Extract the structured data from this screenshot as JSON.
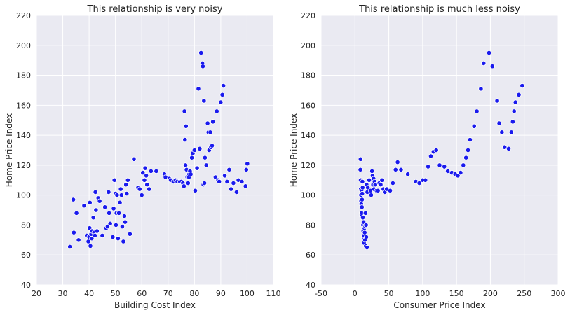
{
  "chart_data": [
    {
      "type": "scatter",
      "title": "This relationship is very noisy",
      "xlabel": "Building Cost Index",
      "ylabel": "Home Price Index",
      "xlim": [
        20,
        110
      ],
      "ylim": [
        40,
        220
      ],
      "xticks": [
        20,
        30,
        40,
        50,
        60,
        70,
        80,
        90,
        100,
        110
      ],
      "yticks": [
        40,
        60,
        80,
        100,
        120,
        140,
        160,
        180,
        200,
        220
      ],
      "grid": true,
      "point_color": "#1a1aee",
      "x": [
        32.7,
        34.0,
        34.2,
        35.2,
        36.0,
        38.1,
        39.1,
        39.7,
        40.0,
        40.2,
        40.3,
        40.5,
        40.8,
        41.0,
        41.1,
        41.6,
        41.9,
        42.2,
        42.4,
        42.6,
        43.0,
        43.5,
        44.0,
        45.0,
        46.0,
        46.5,
        47.0,
        47.4,
        47.6,
        48.0,
        49.0,
        49.3,
        49.6,
        50.0,
        50.2,
        50.4,
        50.6,
        51.0,
        51.3,
        51.7,
        52.0,
        52.3,
        52.6,
        53.0,
        53.4,
        53.7,
        54.0,
        54.3,
        54.7,
        55.5,
        57.0,
        58.6,
        59.2,
        60.0,
        60.4,
        61.0,
        61.3,
        61.7,
        62.0,
        62.8,
        63.5,
        65.5,
        68.6,
        69.0,
        70.5,
        71.0,
        72.0,
        72.8,
        73.5,
        74.5,
        75.0,
        75.6,
        76.0,
        76.2,
        76.4,
        76.6,
        76.8,
        77.0,
        77.3,
        77.6,
        77.9,
        78.0,
        78.3,
        78.6,
        79.0,
        79.4,
        80.0,
        80.3,
        81.0,
        81.5,
        82.0,
        82.5,
        83.0,
        83.2,
        83.4,
        83.6,
        83.8,
        84.0,
        84.5,
        85.0,
        85.3,
        85.6,
        86.0,
        86.3,
        86.7,
        87.0,
        88.0,
        88.5,
        89.0,
        89.4,
        90.0,
        90.6,
        91.0,
        91.5,
        92.4,
        93.2,
        93.9,
        94.8,
        96.0,
        96.7,
        98.0,
        99.4,
        99.7,
        100.1
      ],
      "y": [
        65.5,
        97.0,
        75.0,
        88.0,
        70.0,
        93.0,
        73.0,
        69.0,
        72.0,
        78.0,
        95.0,
        66.0,
        74.0,
        71.0,
        76.0,
        85.0,
        75.0,
        73.0,
        102.0,
        90.0,
        76.0,
        98.0,
        96.0,
        73.0,
        92.0,
        78.0,
        79.0,
        102.0,
        88.0,
        81.0,
        72.0,
        91.0,
        110.0,
        101.0,
        80.0,
        88.0,
        100.0,
        71.0,
        88.0,
        95.0,
        104.0,
        100.0,
        79.0,
        69.0,
        86.0,
        82.0,
        107.0,
        101.0,
        110.0,
        74.0,
        124.0,
        105.0,
        104.0,
        100.0,
        115.0,
        110.0,
        118.0,
        113.0,
        107.0,
        104.0,
        116.0,
        116.0,
        114.0,
        112.0,
        111.0,
        110.0,
        109.0,
        110.0,
        109.0,
        109.0,
        109.0,
        108.0,
        106.0,
        156.0,
        137.0,
        120.0,
        146.0,
        117.0,
        112.0,
        108.0,
        112.0,
        114.0,
        116.0,
        114.0,
        125.0,
        128.0,
        130.0,
        103.0,
        118.0,
        171.0,
        131.0,
        195.0,
        188.0,
        186.0,
        107.0,
        163.0,
        108.0,
        125.0,
        120.0,
        148.0,
        142.0,
        130.0,
        142.0,
        132.0,
        133.0,
        149.0,
        112.0,
        156.0,
        110.0,
        109.0,
        162.0,
        167.0,
        173.0,
        113.0,
        109.0,
        117.0,
        104.0,
        108.0,
        102.0,
        110.0,
        109.0,
        106.0,
        117.0,
        121.0
      ]
    },
    {
      "type": "scatter",
      "title": "This relationship is much less noisy",
      "xlabel": "Consumer Price Index",
      "ylabel": "Home Price Index",
      "xlim": [
        -50,
        300
      ],
      "ylim": [
        40,
        220
      ],
      "xticks": [
        -50,
        0,
        50,
        100,
        150,
        200,
        250,
        300
      ],
      "yticks": [
        40,
        60,
        80,
        100,
        120,
        140,
        160,
        180,
        200,
        220
      ],
      "grid": true,
      "point_color": "#1a1aee",
      "x": [
        8.0,
        8.3,
        8.5,
        8.7,
        9.0,
        9.2,
        9.4,
        9.6,
        9.8,
        10.0,
        10.3,
        10.5,
        10.8,
        11.0,
        11.3,
        11.6,
        12.0,
        12.4,
        12.7,
        13.0,
        13.3,
        13.5,
        14.0,
        14.4,
        14.8,
        15.2,
        15.6,
        16.0,
        16.4,
        16.8,
        17.2,
        17.8,
        18.3,
        19.0,
        21.0,
        23.0,
        24.0,
        25.2,
        26.0,
        26.8,
        27.5,
        28.2,
        29.0,
        30.0,
        32.0,
        34.0,
        36.0,
        38.0,
        40.0,
        42.0,
        44.0,
        47.0,
        52.0,
        56.0,
        60.0,
        63.0,
        68.0,
        78.0,
        90.0,
        95.0,
        100.0,
        104.0,
        108.0,
        112.0,
        116.0,
        120.0,
        125.0,
        132.0,
        137.0,
        143.0,
        148.0,
        152.0,
        156.0,
        160.0,
        164.0,
        167.0,
        170.0,
        176.0,
        180.0,
        186.0,
        190.0,
        198.0,
        203.0,
        210.0,
        213.0,
        217.0,
        221.0,
        227.0,
        231.0,
        233.0,
        235.0,
        237.0,
        242.0,
        247.0
      ],
      "y": [
        117.0,
        124.0,
        110.0,
        104.0,
        100.0,
        96.0,
        94.0,
        103.0,
        88.0,
        86.0,
        92.0,
        97.0,
        101.0,
        109.0,
        105.0,
        85.0,
        80.0,
        76.0,
        82.0,
        72.0,
        73.0,
        68.0,
        78.0,
        75.0,
        70.0,
        79.0,
        88.0,
        66.0,
        80.0,
        72.0,
        107.0,
        65.0,
        102.0,
        105.0,
        110.0,
        103.0,
        100.0,
        116.0,
        113.0,
        107.0,
        111.0,
        104.0,
        109.0,
        107.0,
        103.0,
        103.0,
        108.0,
        107.0,
        110.0,
        104.0,
        102.0,
        104.0,
        103.0,
        108.0,
        117.0,
        122.0,
        117.0,
        114.0,
        109.0,
        108.0,
        110.0,
        110.0,
        119.0,
        126.0,
        129.0,
        130.0,
        120.0,
        119.0,
        116.0,
        115.0,
        114.0,
        113.0,
        115.0,
        120.0,
        125.0,
        130.0,
        137.0,
        146.0,
        156.0,
        171.0,
        188.0,
        195.0,
        186.0,
        163.0,
        148.0,
        142.0,
        132.0,
        131.0,
        142.0,
        149.0,
        156.0,
        162.0,
        167.0,
        173.0
      ]
    }
  ]
}
